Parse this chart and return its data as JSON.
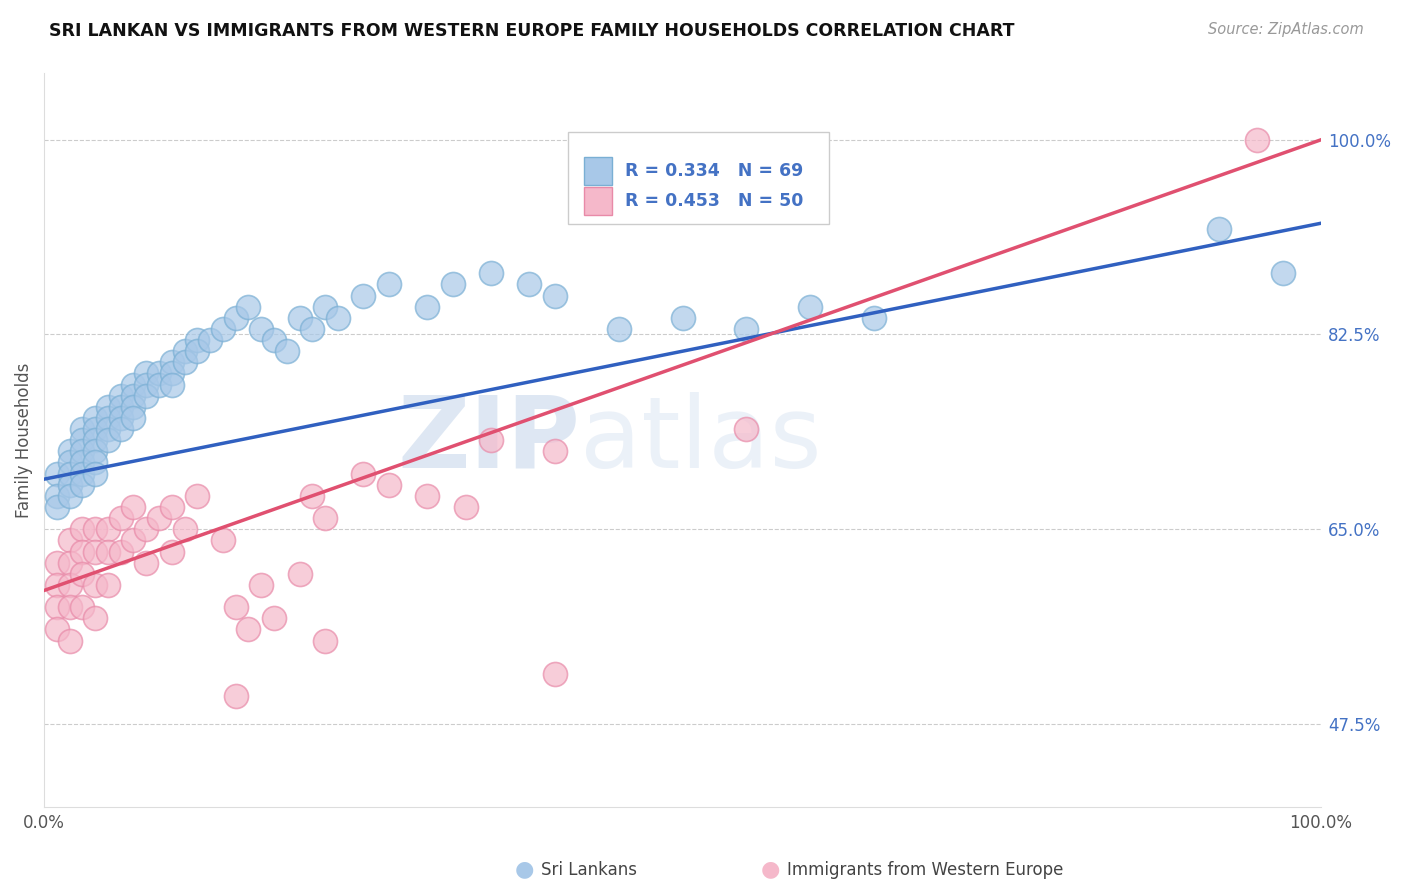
{
  "title": "SRI LANKAN VS IMMIGRANTS FROM WESTERN EUROPE FAMILY HOUSEHOLDS CORRELATION CHART",
  "source": "Source: ZipAtlas.com",
  "ylabel": "Family Households",
  "xlim": [
    0.0,
    1.0
  ],
  "ylim": [
    0.4,
    1.06
  ],
  "ytick_labels_right": [
    "47.5%",
    "65.0%",
    "82.5%",
    "100.0%"
  ],
  "ytick_positions_right": [
    0.475,
    0.65,
    0.825,
    1.0
  ],
  "blue_color": "#a8c8e8",
  "blue_edge_color": "#7aafd4",
  "pink_color": "#f5b8ca",
  "pink_edge_color": "#e88aa8",
  "blue_line_color": "#3060c0",
  "pink_line_color": "#e05070",
  "legend_r_blue": "R = 0.334",
  "legend_n_blue": "N = 69",
  "legend_r_pink": "R = 0.453",
  "legend_n_pink": "N = 50",
  "watermark_zip": "ZIP",
  "watermark_atlas": "atlas",
  "blue_x": [
    0.01,
    0.01,
    0.01,
    0.02,
    0.02,
    0.02,
    0.02,
    0.02,
    0.03,
    0.03,
    0.03,
    0.03,
    0.03,
    0.03,
    0.04,
    0.04,
    0.04,
    0.04,
    0.04,
    0.04,
    0.05,
    0.05,
    0.05,
    0.05,
    0.06,
    0.06,
    0.06,
    0.06,
    0.07,
    0.07,
    0.07,
    0.07,
    0.08,
    0.08,
    0.08,
    0.09,
    0.09,
    0.1,
    0.1,
    0.1,
    0.11,
    0.11,
    0.12,
    0.12,
    0.13,
    0.14,
    0.15,
    0.16,
    0.17,
    0.18,
    0.19,
    0.2,
    0.21,
    0.22,
    0.23,
    0.25,
    0.27,
    0.3,
    0.32,
    0.35,
    0.38,
    0.4,
    0.45,
    0.5,
    0.55,
    0.6,
    0.65,
    0.92,
    0.97
  ],
  "blue_y": [
    0.7,
    0.68,
    0.67,
    0.72,
    0.71,
    0.7,
    0.69,
    0.68,
    0.74,
    0.73,
    0.72,
    0.71,
    0.7,
    0.69,
    0.75,
    0.74,
    0.73,
    0.72,
    0.71,
    0.7,
    0.76,
    0.75,
    0.74,
    0.73,
    0.77,
    0.76,
    0.75,
    0.74,
    0.78,
    0.77,
    0.76,
    0.75,
    0.79,
    0.78,
    0.77,
    0.79,
    0.78,
    0.8,
    0.79,
    0.78,
    0.81,
    0.8,
    0.82,
    0.81,
    0.82,
    0.83,
    0.84,
    0.85,
    0.83,
    0.82,
    0.81,
    0.84,
    0.83,
    0.85,
    0.84,
    0.86,
    0.87,
    0.85,
    0.87,
    0.88,
    0.87,
    0.86,
    0.83,
    0.84,
    0.83,
    0.85,
    0.84,
    0.92,
    0.88
  ],
  "pink_x": [
    0.01,
    0.01,
    0.01,
    0.01,
    0.02,
    0.02,
    0.02,
    0.02,
    0.02,
    0.03,
    0.03,
    0.03,
    0.03,
    0.04,
    0.04,
    0.04,
    0.04,
    0.05,
    0.05,
    0.05,
    0.06,
    0.06,
    0.07,
    0.07,
    0.08,
    0.08,
    0.09,
    0.1,
    0.1,
    0.11,
    0.12,
    0.14,
    0.15,
    0.16,
    0.17,
    0.18,
    0.2,
    0.21,
    0.22,
    0.25,
    0.27,
    0.3,
    0.33,
    0.35,
    0.4,
    0.55,
    0.95,
    0.4,
    0.22,
    0.15
  ],
  "pink_y": [
    0.62,
    0.6,
    0.58,
    0.56,
    0.64,
    0.62,
    0.6,
    0.58,
    0.55,
    0.65,
    0.63,
    0.61,
    0.58,
    0.65,
    0.63,
    0.6,
    0.57,
    0.65,
    0.63,
    0.6,
    0.66,
    0.63,
    0.67,
    0.64,
    0.65,
    0.62,
    0.66,
    0.67,
    0.63,
    0.65,
    0.68,
    0.64,
    0.58,
    0.56,
    0.6,
    0.57,
    0.61,
    0.68,
    0.66,
    0.7,
    0.69,
    0.68,
    0.67,
    0.73,
    0.72,
    0.74,
    1.0,
    0.52,
    0.55,
    0.5
  ]
}
